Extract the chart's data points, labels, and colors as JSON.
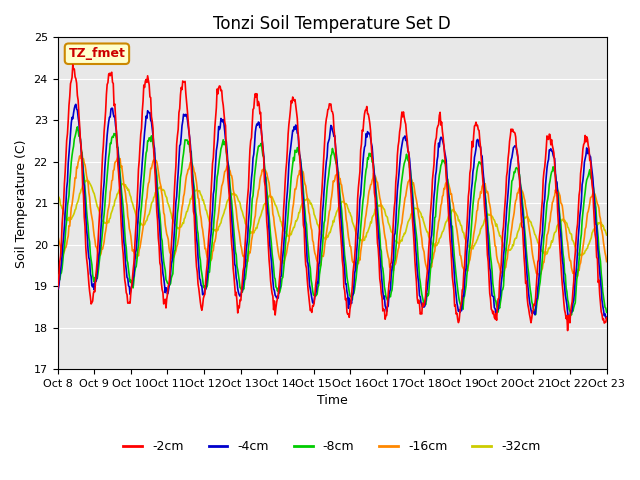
{
  "title": "Tonzi Soil Temperature Set D",
  "xlabel": "Time",
  "ylabel": "Soil Temperature (C)",
  "ylim": [
    17.0,
    25.0
  ],
  "yticks": [
    17.0,
    18.0,
    19.0,
    20.0,
    21.0,
    22.0,
    23.0,
    24.0,
    25.0
  ],
  "xtick_labels": [
    "Oct 8",
    "Oct 9",
    "Oct 10",
    "Oct 11",
    "Oct 12",
    "Oct 13",
    "Oct 14",
    "Oct 15",
    "Oct 16",
    "Oct 17",
    "Oct 18",
    "Oct 19",
    "Oct 20",
    "Oct 21",
    "Oct 22",
    "Oct 23"
  ],
  "annotation_text": "TZ_fmet",
  "annotation_color": "#cc0000",
  "annotation_bg": "#ffffcc",
  "annotation_border": "#cc8800",
  "colors": {
    "-2cm": "#ff0000",
    "-4cm": "#0000cc",
    "-8cm": "#00cc00",
    "-16cm": "#ff8800",
    "-32cm": "#cccc00"
  },
  "legend_labels": [
    "-2cm",
    "-4cm",
    "-8cm",
    "-16cm",
    "-32cm"
  ],
  "background_color": "#e8e8e8",
  "n_days": 15,
  "n_points_per_day": 48
}
